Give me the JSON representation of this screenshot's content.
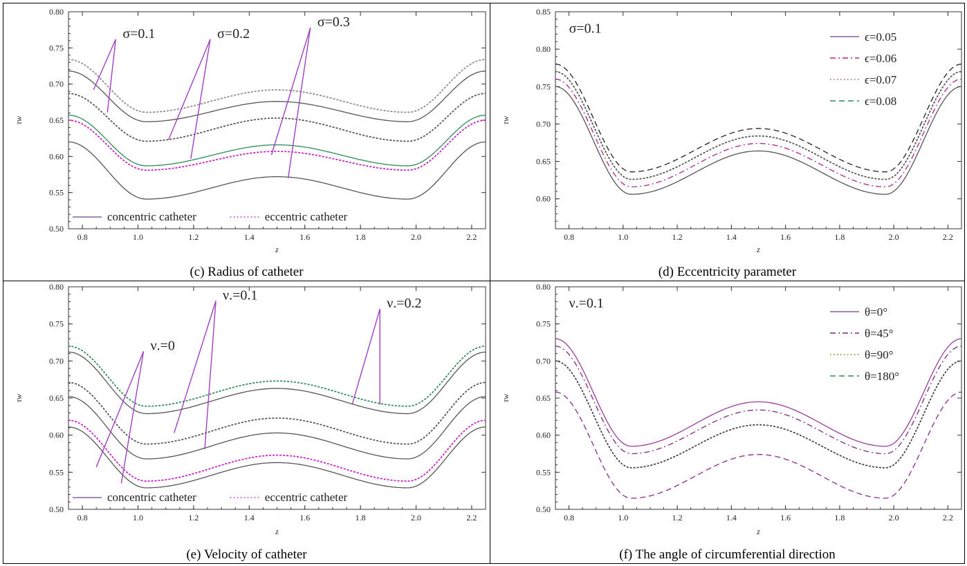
{
  "chart_data": [
    {
      "type": "line",
      "caption": "(c) Radius of catheter",
      "xlabel": "z",
      "ylabel": "τw",
      "xlim": [
        0.75,
        2.25
      ],
      "ylim": [
        0.5,
        0.8
      ],
      "xticks": [
        "0.8",
        "1.0",
        "1.2",
        "1.4",
        "1.6",
        "1.8",
        "2.0",
        "2.2"
      ],
      "yticks": [
        "0.50",
        "0.55",
        "0.60",
        "0.65",
        "0.70",
        "0.75",
        "0.80"
      ],
      "grid": false,
      "legend": {
        "placement": "bottom-left",
        "layout": "horizontal",
        "entries": [
          {
            "label": "concentric catheter",
            "color": "#8064a2",
            "dash": "solid"
          },
          {
            "label": "eccentric catheter",
            "color": "#c71fc7",
            "dash": "dotted"
          }
        ]
      },
      "annotations": [
        {
          "text": "σ=0.1",
          "anchor": [
            0.92,
            0.762
          ],
          "targets": [
            [
              0.84,
              0.692
            ],
            [
              0.89,
              0.661
            ]
          ]
        },
        {
          "text": "σ=0.2",
          "anchor": [
            1.26,
            0.762
          ],
          "targets": [
            [
              1.11,
              0.623
            ],
            [
              1.19,
              0.597
            ]
          ]
        },
        {
          "text": "σ=0.3",
          "anchor": [
            1.62,
            0.778
          ],
          "targets": [
            [
              1.48,
              0.602
            ],
            [
              1.54,
              0.57
            ]
          ]
        }
      ],
      "series": [
        {
          "color": "#8c8c8c",
          "dash": "dotted",
          "points": [
            [
              0.75,
              0.734
            ],
            [
              1.03,
              0.661
            ],
            [
              1.5,
              0.692
            ],
            [
              1.97,
              0.661
            ],
            [
              2.25,
              0.734
            ]
          ]
        },
        {
          "color": "#555555",
          "dash": "solid",
          "points": [
            [
              0.75,
              0.718
            ],
            [
              1.03,
              0.648
            ],
            [
              1.5,
              0.676
            ],
            [
              1.97,
              0.648
            ],
            [
              2.25,
              0.718
            ]
          ]
        },
        {
          "color": "#555555",
          "dash": "dotted",
          "points": [
            [
              0.75,
              0.687
            ],
            [
              1.03,
              0.621
            ],
            [
              1.5,
              0.653
            ],
            [
              1.97,
              0.621
            ],
            [
              2.25,
              0.687
            ]
          ]
        },
        {
          "color": "#2e8b57",
          "dash": "solid",
          "points": [
            [
              0.75,
              0.657
            ],
            [
              1.03,
              0.587
            ],
            [
              1.5,
              0.616
            ],
            [
              1.97,
              0.587
            ],
            [
              2.25,
              0.657
            ]
          ]
        },
        {
          "color": "#c71fc7",
          "dash": "dotted",
          "points": [
            [
              0.75,
              0.65
            ],
            [
              1.03,
              0.581
            ],
            [
              1.5,
              0.607
            ],
            [
              1.97,
              0.581
            ],
            [
              2.25,
              0.65
            ]
          ]
        },
        {
          "color": "#555555",
          "dash": "solid",
          "points": [
            [
              0.75,
              0.62
            ],
            [
              1.03,
              0.541
            ],
            [
              1.5,
              0.572
            ],
            [
              1.97,
              0.541
            ],
            [
              2.25,
              0.62
            ]
          ]
        }
      ]
    },
    {
      "type": "line",
      "caption": "(d) Eccentricity parameter",
      "xlabel": "z",
      "ylabel": "τw",
      "xlim": [
        0.75,
        2.25
      ],
      "ylim": [
        0.56,
        0.85
      ],
      "xticks": [
        "0.8",
        "1.0",
        "1.2",
        "1.4",
        "1.6",
        "1.8",
        "2.0",
        "2.2"
      ],
      "yticks": [
        "0.60",
        "0.65",
        "0.70",
        "0.75",
        "0.80",
        "0.85"
      ],
      "grid": false,
      "legend": {
        "placement": "top-right",
        "layout": "vertical",
        "entries": [
          {
            "label": "ϵ=0.05",
            "color": "#8064a2",
            "dash": "solid"
          },
          {
            "label": "ϵ=0.06",
            "color": "#b0238f",
            "dash": "dashdot"
          },
          {
            "label": "ϵ=0.07",
            "color": "#a0528c",
            "dash": "dotted"
          },
          {
            "label": "ϵ=0.08",
            "color": "#2e8b57",
            "dash": "dashed"
          }
        ]
      },
      "annotations": [
        {
          "text": "σ=0.1",
          "anchor": [
            0.8,
            0.822
          ],
          "targets": []
        }
      ],
      "series": [
        {
          "name": "ϵ=0.05",
          "color": "#555555",
          "dash": "solid",
          "points": [
            [
              0.75,
              0.75
            ],
            [
              1.03,
              0.606
            ],
            [
              1.5,
              0.664
            ],
            [
              1.97,
              0.606
            ],
            [
              2.25,
              0.75
            ]
          ]
        },
        {
          "name": "ϵ=0.06",
          "color": "#b0238f",
          "dash": "dashdot",
          "points": [
            [
              0.75,
              0.76
            ],
            [
              1.03,
              0.616
            ],
            [
              1.5,
              0.674
            ],
            [
              1.97,
              0.616
            ],
            [
              2.25,
              0.76
            ]
          ]
        },
        {
          "name": "ϵ=0.07",
          "color": "#555555",
          "dash": "dotted",
          "points": [
            [
              0.75,
              0.77
            ],
            [
              1.03,
              0.626
            ],
            [
              1.5,
              0.684
            ],
            [
              1.97,
              0.626
            ],
            [
              2.25,
              0.77
            ]
          ]
        },
        {
          "name": "ϵ=0.08",
          "color": "#222222",
          "dash": "dashed",
          "points": [
            [
              0.75,
              0.78
            ],
            [
              1.03,
              0.636
            ],
            [
              1.5,
              0.694
            ],
            [
              1.97,
              0.636
            ],
            [
              2.25,
              0.78
            ]
          ]
        }
      ]
    },
    {
      "type": "line",
      "caption": "(e) Velocity of catheter",
      "xlabel": "z",
      "ylabel": "τw",
      "xlim": [
        0.75,
        2.25
      ],
      "ylim": [
        0.5,
        0.8
      ],
      "xticks": [
        "0.8",
        "1.0",
        "1.2",
        "1.4",
        "1.6",
        "1.8",
        "2.0",
        "2.2"
      ],
      "yticks": [
        "0.50",
        "0.55",
        "0.60",
        "0.65",
        "0.70",
        "0.75",
        "0.80"
      ],
      "grid": false,
      "legend": {
        "placement": "bottom-left",
        "layout": "horizontal",
        "entries": [
          {
            "label": "concentric catheter",
            "color": "#8064a2",
            "dash": "solid"
          },
          {
            "label": "eccentric catheter",
            "color": "#c71fc7",
            "dash": "dotted"
          }
        ]
      },
      "annotations": [
        {
          "text": "ν.=0",
          "anchor": [
            1.02,
            0.713
          ],
          "targets": [
            [
              0.85,
              0.557
            ],
            [
              0.94,
              0.535
            ]
          ]
        },
        {
          "text": "ν.=0.1",
          "anchor": [
            1.28,
            0.781
          ],
          "targets": [
            [
              1.13,
              0.603
            ],
            [
              1.24,
              0.581
            ]
          ]
        },
        {
          "text": "ν.=0.2",
          "anchor": [
            1.87,
            0.77
          ],
          "targets": [
            [
              1.77,
              0.641
            ],
            [
              1.87,
              0.641
            ]
          ]
        }
      ],
      "series": [
        {
          "color": "#2e8b57",
          "dash": "dotted",
          "points": [
            [
              0.75,
              0.72
            ],
            [
              1.03,
              0.639
            ],
            [
              1.5,
              0.673
            ],
            [
              1.97,
              0.639
            ],
            [
              2.25,
              0.72
            ]
          ]
        },
        {
          "color": "#555555",
          "dash": "solid",
          "points": [
            [
              0.75,
              0.712
            ],
            [
              1.03,
              0.629
            ],
            [
              1.5,
              0.663
            ],
            [
              1.97,
              0.629
            ],
            [
              2.25,
              0.712
            ]
          ]
        },
        {
          "color": "#555555",
          "dash": "dotted",
          "points": [
            [
              0.75,
              0.671
            ],
            [
              1.03,
              0.588
            ],
            [
              1.5,
              0.623
            ],
            [
              1.97,
              0.588
            ],
            [
              2.25,
              0.671
            ]
          ]
        },
        {
          "color": "#555555",
          "dash": "solid",
          "points": [
            [
              0.75,
              0.652
            ],
            [
              1.03,
              0.568
            ],
            [
              1.5,
              0.603
            ],
            [
              1.97,
              0.568
            ],
            [
              2.25,
              0.652
            ]
          ]
        },
        {
          "color": "#c71fc7",
          "dash": "dotted",
          "points": [
            [
              0.75,
              0.62
            ],
            [
              1.03,
              0.538
            ],
            [
              1.5,
              0.573
            ],
            [
              1.97,
              0.538
            ],
            [
              2.25,
              0.62
            ]
          ]
        },
        {
          "color": "#555555",
          "dash": "solid",
          "points": [
            [
              0.75,
              0.611
            ],
            [
              1.03,
              0.529
            ],
            [
              1.5,
              0.563
            ],
            [
              1.97,
              0.529
            ],
            [
              2.25,
              0.611
            ]
          ]
        }
      ]
    },
    {
      "type": "line",
      "caption": "(f) The angle of circumferential direction",
      "xlabel": "z",
      "ylabel": "τw",
      "xlim": [
        0.75,
        2.25
      ],
      "ylim": [
        0.5,
        0.8
      ],
      "xticks": [
        "0.8",
        "1.0",
        "1.2",
        "1.4",
        "1.6",
        "1.8",
        "2.0",
        "2.2"
      ],
      "yticks": [
        "0.50",
        "0.55",
        "0.60",
        "0.65",
        "0.70",
        "0.75",
        "0.80"
      ],
      "grid": false,
      "legend": {
        "placement": "top-right",
        "layout": "vertical",
        "entries": [
          {
            "label": "θ=0°",
            "color": "#8064a2",
            "dash": "solid"
          },
          {
            "label": "θ=45°",
            "color": "#7a2a7a",
            "dash": "dashdot"
          },
          {
            "label": "θ=90°",
            "color": "#808000",
            "dash": "dotted"
          },
          {
            "label": "θ=180°",
            "color": "#2e8b57",
            "dash": "dashed"
          }
        ]
      },
      "annotations": [
        {
          "text": "ν.=0.1",
          "anchor": [
            0.8,
            0.772
          ],
          "targets": []
        }
      ],
      "series": [
        {
          "name": "θ=0°",
          "color": "#9b3d9b",
          "dash": "solid",
          "points": [
            [
              0.75,
              0.73
            ],
            [
              1.03,
              0.585
            ],
            [
              1.5,
              0.645
            ],
            [
              1.97,
              0.585
            ],
            [
              2.25,
              0.73
            ]
          ]
        },
        {
          "name": "θ=45°",
          "color": "#7a2a7a",
          "dash": "dashdot",
          "points": [
            [
              0.75,
              0.72
            ],
            [
              1.03,
              0.575
            ],
            [
              1.5,
              0.634
            ],
            [
              1.97,
              0.575
            ],
            [
              2.25,
              0.72
            ]
          ]
        },
        {
          "name": "θ=90°",
          "color": "#444444",
          "dash": "dotted",
          "points": [
            [
              0.75,
              0.7
            ],
            [
              1.03,
              0.556
            ],
            [
              1.5,
              0.614
            ],
            [
              1.97,
              0.556
            ],
            [
              2.25,
              0.7
            ]
          ]
        },
        {
          "name": "θ=180°",
          "color": "#8b2a8b",
          "dash": "dashed",
          "points": [
            [
              0.75,
              0.658
            ],
            [
              1.03,
              0.515
            ],
            [
              1.5,
              0.574
            ],
            [
              1.97,
              0.515
            ],
            [
              2.25,
              0.658
            ]
          ]
        }
      ]
    }
  ]
}
